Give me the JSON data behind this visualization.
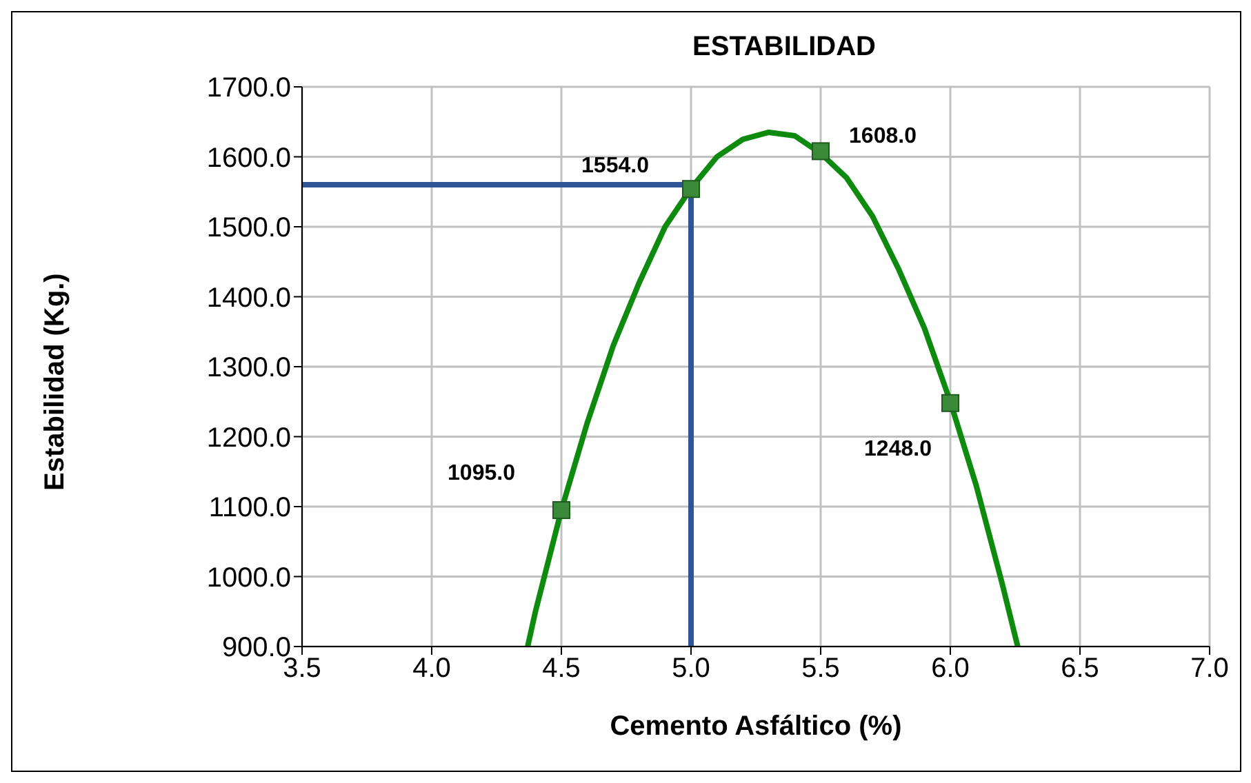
{
  "chart_data": {
    "type": "scatter",
    "title": "ESTABILIDAD",
    "xlabel": "Cemento Asfáltico (%)",
    "ylabel": "Estabilidad (Kg.)",
    "xlim": [
      3.5,
      7.0
    ],
    "xticks": [
      {
        "value": 3.5,
        "label": "3.5"
      },
      {
        "value": 4,
        "label": "4.0"
      },
      {
        "value": 4.5,
        "label": "4.5"
      },
      {
        "value": 5,
        "label": "5.0"
      },
      {
        "value": 5.5,
        "label": "5.5"
      },
      {
        "value": 6,
        "label": "6.0"
      },
      {
        "value": 6.5,
        "label": "6.5"
      },
      {
        "value": 7,
        "label": "7.0"
      }
    ],
    "ylim": [
      900,
      1700
    ],
    "yticks": [
      {
        "value": 900,
        "label": "900.0"
      },
      {
        "value": 1000,
        "label": "1000.0"
      },
      {
        "value": 1100,
        "label": "1100.0"
      },
      {
        "value": 1200,
        "label": "1200.0"
      },
      {
        "value": 1300,
        "label": "1300.0"
      },
      {
        "value": 1400,
        "label": "1400.0"
      },
      {
        "value": 1500,
        "label": "1500.0"
      },
      {
        "value": 1600,
        "label": "1600.0"
      },
      {
        "value": 1700,
        "label": "1700.0"
      }
    ],
    "grid": true,
    "series": [
      {
        "type": "line",
        "color": "#0e8a0e",
        "x": [
          4.37,
          4.4,
          4.5,
          4.6,
          4.7,
          4.8,
          4.9,
          5.0,
          5.1,
          5.2,
          5.3,
          5.4,
          5.5,
          5.6,
          5.7,
          5.8,
          5.9,
          6.0,
          6.1,
          6.2,
          6.26
        ],
        "values": [
          900,
          950,
          1095,
          1220,
          1330,
          1420,
          1500,
          1555,
          1600,
          1625,
          1635,
          1630,
          1605,
          1570,
          1515,
          1440,
          1355,
          1250,
          1130,
          990,
          900
        ],
        "marker": "none"
      },
      {
        "type": "line",
        "color": "#2f5597",
        "x": [
          3.5,
          5.0,
          5.0
        ],
        "values": [
          1560,
          1560,
          900
        ],
        "marker": "none"
      },
      {
        "color": "#3a8a3a",
        "x": [
          4.5,
          5.0,
          5.5,
          6.0
        ],
        "values": [
          1095,
          1554,
          1608,
          1248
        ],
        "marker": "square",
        "value_labels": [
          "1095.0",
          "1554.0",
          "1608.0",
          "1248.0"
        ]
      }
    ]
  }
}
